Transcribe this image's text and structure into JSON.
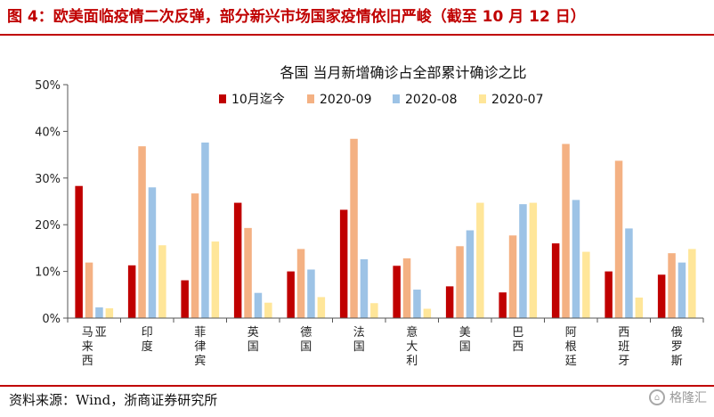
{
  "figure_title": "图 4：欧美面临疫情二次反弹，部分新兴市场国家疫情依旧严峻（截至 10 月 12 日）",
  "source_note": "资料来源：Wind，浙商证券研究所",
  "watermark_text": "格隆汇",
  "chart_data": {
    "type": "bar",
    "title": "各国 当月新增确诊占全部累计确诊之比",
    "xlabel": "",
    "ylabel": "",
    "ylim": [
      0,
      50
    ],
    "yticks": [
      "0%",
      "10%",
      "20%",
      "30%",
      "40%",
      "50%"
    ],
    "legend_position": "top",
    "grid": false,
    "categories": [
      "马来西亚",
      "印度",
      "菲律宾",
      "英国",
      "德国",
      "法国",
      "意大利",
      "美国",
      "巴西",
      "阿根廷",
      "西班牙",
      "俄罗斯"
    ],
    "series": [
      {
        "name": "10月迄今",
        "color": "#c00000",
        "values": [
          28.3,
          11.3,
          8.1,
          24.7,
          10.0,
          23.2,
          11.2,
          6.8,
          5.5,
          16.0,
          10.0,
          9.3
        ]
      },
      {
        "name": "2020-09",
        "color": "#f4b183",
        "values": [
          11.9,
          36.8,
          26.7,
          19.3,
          14.8,
          38.4,
          12.8,
          15.4,
          17.7,
          37.3,
          33.7,
          13.9
        ]
      },
      {
        "name": "2020-08",
        "color": "#9dc3e6",
        "values": [
          2.3,
          28.0,
          37.6,
          5.4,
          10.4,
          12.6,
          6.1,
          18.8,
          24.4,
          25.3,
          19.2,
          11.9
        ]
      },
      {
        "name": "2020-07",
        "color": "#ffe699",
        "values": [
          2.1,
          15.6,
          16.4,
          3.3,
          4.5,
          3.2,
          2.0,
          24.7,
          24.7,
          14.2,
          4.4,
          14.8
        ]
      }
    ]
  }
}
